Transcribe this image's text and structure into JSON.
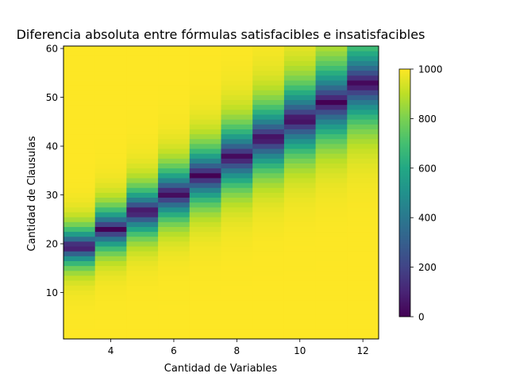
{
  "chart_data": {
    "type": "heatmap",
    "title": "Diferencia absoluta entre fórmulas satisfacibles e insatisfacibles",
    "xlabel": "Cantidad de Variables",
    "ylabel": "Cantidad de Clausulas",
    "x_range": [
      2.5,
      12.5
    ],
    "y_range": [
      0.5,
      60.5
    ],
    "x_ticks": [
      4,
      6,
      8,
      10,
      12
    ],
    "y_ticks": [
      10,
      20,
      30,
      40,
      50,
      60
    ],
    "x_values": [
      3,
      4,
      5,
      6,
      7,
      8,
      9,
      10,
      11,
      12
    ],
    "y_values_from": 1,
    "y_values_to": 60,
    "cell_model": "value = |1000 - 2000 * fraction_satisfiable(variables, clauses)|; transition (value 0) at clauses ≈ 19.4, 23.0, 26.6, 30.2, 34.0, 37.8, 41.6, 45.4, 49.0, 52.8 for variables 3..12",
    "crossover_clauses": [
      19.4,
      23.0,
      26.6,
      30.2,
      34.0,
      37.8,
      41.6,
      45.4,
      49.0,
      52.8
    ],
    "transition_width": [
      8.5,
      9.5,
      10.5,
      11.5,
      12.5,
      13.5,
      14.5,
      15.5,
      16.5,
      17.5
    ],
    "colorbar": {
      "min": 0,
      "max": 1000,
      "ticks": [
        0,
        200,
        400,
        600,
        800,
        1000
      ],
      "colormap": "viridis"
    },
    "grid": false
  }
}
